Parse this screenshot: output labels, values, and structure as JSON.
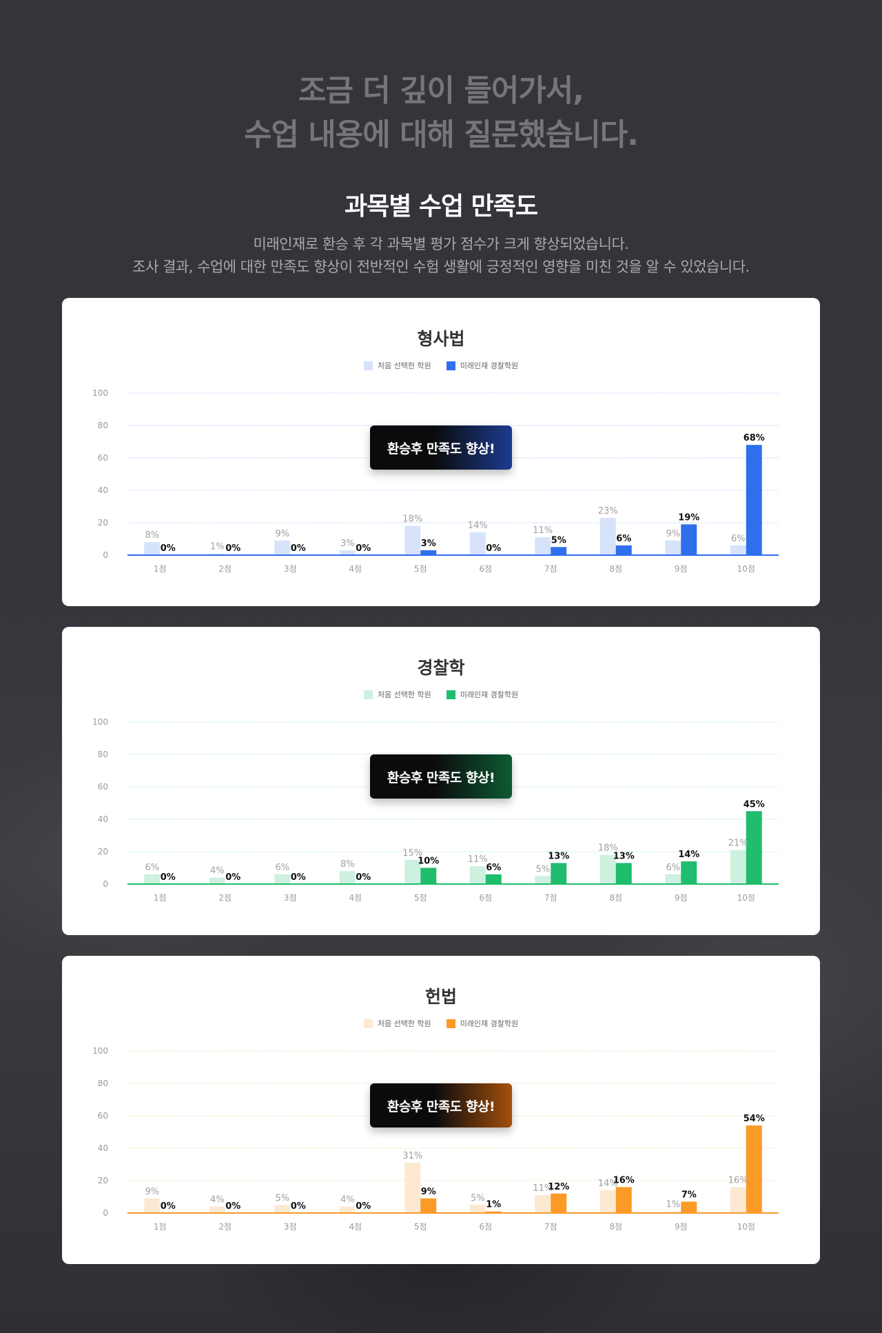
{
  "intro": {
    "line1": "조금 더 깊이 들어가서,",
    "line2": "수업 내용에 대해 질문했습니다."
  },
  "section": {
    "title": "과목별 수업 만족도",
    "desc_line1": "미래인재로 환승 후 각 과목별 평가 점수가 크게 향상되었습니다.",
    "desc_line2": "조사 결과, 수업에 대한 만족도 향상이 전반적인 수험 생활에 긍정적인 영향을 미친 것을 알 수 있었습니다."
  },
  "chart_data": [
    {
      "type": "bar",
      "title": "형사법",
      "badge": "환승후 만족도 향상!",
      "categories": [
        "1점",
        "2점",
        "3점",
        "4점",
        "5점",
        "6점",
        "7점",
        "8점",
        "9점",
        "10점"
      ],
      "y_ticks": [
        "0",
        "20",
        "40",
        "60",
        "80",
        "100"
      ],
      "ylim": [
        0,
        100
      ],
      "legend_position": "top-center",
      "grid": true,
      "colors": {
        "light": "#d6e3fb",
        "dark": "#2f6fec",
        "badge_end": "#1c3c8f"
      },
      "series": [
        {
          "name": "처음 선택한 학원",
          "values": [
            8,
            1,
            9,
            3,
            18,
            14,
            11,
            23,
            9,
            6
          ],
          "labels": [
            "8%",
            "1%",
            "9%",
            "3%",
            "18%",
            "14%",
            "11%",
            "23%",
            "9%",
            "6%"
          ]
        },
        {
          "name": "미래인재 경찰학원",
          "values": [
            0,
            0,
            0,
            0,
            3,
            0,
            5,
            6,
            19,
            68
          ],
          "labels": [
            "0%",
            "0%",
            "0%",
            "0%",
            "3%",
            "0%",
            "5%",
            "6%",
            "19%",
            "68%"
          ]
        }
      ]
    },
    {
      "type": "bar",
      "title": "경찰학",
      "badge": "환승후 만족도 향상!",
      "categories": [
        "1점",
        "2점",
        "3점",
        "4점",
        "5점",
        "6점",
        "7점",
        "8점",
        "9점",
        "10점"
      ],
      "y_ticks": [
        "0",
        "20",
        "40",
        "60",
        "80",
        "100"
      ],
      "ylim": [
        0,
        100
      ],
      "legend_position": "top-center",
      "grid": true,
      "colors": {
        "light": "#cdf1de",
        "dark": "#1fbd6d",
        "badge_end": "#0e5a32"
      },
      "series": [
        {
          "name": "처음 선택한 학원",
          "values": [
            6,
            4,
            6,
            8,
            15,
            11,
            5,
            18,
            6,
            21
          ],
          "labels": [
            "6%",
            "4%",
            "6%",
            "8%",
            "15%",
            "11%",
            "5%",
            "18%",
            "6%",
            "21%"
          ]
        },
        {
          "name": "미래인재 경찰학원",
          "values": [
            0,
            0,
            0,
            0,
            10,
            6,
            13,
            13,
            14,
            45
          ],
          "labels": [
            "0%",
            "0%",
            "0%",
            "0%",
            "10%",
            "6%",
            "13%",
            "13%",
            "14%",
            "45%"
          ]
        }
      ]
    },
    {
      "type": "bar",
      "title": "헌법",
      "badge": "환승후 만족도 향상!",
      "categories": [
        "1점",
        "2점",
        "3점",
        "4점",
        "5점",
        "6점",
        "7점",
        "8점",
        "9점",
        "10점"
      ],
      "y_ticks": [
        "0",
        "20",
        "40",
        "60",
        "80",
        "100"
      ],
      "ylim": [
        0,
        100
      ],
      "legend_position": "top-center",
      "grid": true,
      "colors": {
        "light": "#fde9d2",
        "dark": "#fb9a27",
        "badge_end": "#a34f0c"
      },
      "series": [
        {
          "name": "처음 선택한 학원",
          "values": [
            9,
            4,
            5,
            4,
            31,
            5,
            11,
            14,
            1,
            16
          ],
          "labels": [
            "9%",
            "4%",
            "5%",
            "4%",
            "31%",
            "5%",
            "11%",
            "14%",
            "1%",
            "16%"
          ]
        },
        {
          "name": "미래인재 경찰학원",
          "values": [
            0,
            0,
            0,
            0,
            9,
            1,
            12,
            16,
            7,
            54
          ],
          "labels": [
            "0%",
            "0%",
            "0%",
            "0%",
            "9%",
            "1%",
            "12%",
            "16%",
            "7%",
            "54%"
          ]
        }
      ]
    }
  ]
}
